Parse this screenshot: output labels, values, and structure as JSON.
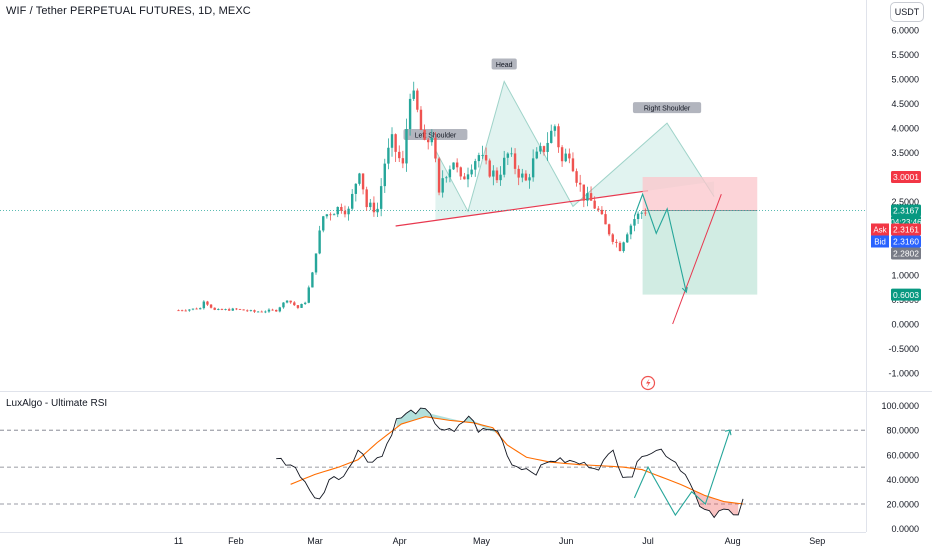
{
  "header": {
    "symbol_title": "WIF / Tether PERPETUAL FUTURES, 1D, MEXC",
    "currency_button": "USDT"
  },
  "chart_data": [
    {
      "type": "candlestick",
      "ylim": [
        -1.1,
        6.1
      ],
      "price_ticks": [
        "6.0000",
        "5.5000",
        "5.0000",
        "4.5000",
        "4.0000",
        "3.5000",
        "2.5000",
        "1.5000",
        "1.0000",
        "0.5000",
        "0.0000",
        "-0.5000",
        "-1.0000"
      ],
      "price_tick_values": [
        6,
        5.5,
        5,
        4.5,
        4,
        3.5,
        2.5,
        1.5,
        1,
        0.5,
        0,
        -0.5,
        -1
      ],
      "x_ticks": [
        "11",
        "Feb",
        "Mar",
        "Apr",
        "May",
        "Jun",
        "Jul",
        "Aug",
        "Sep"
      ],
      "x_tick_days": [
        10,
        31,
        60,
        91,
        121,
        152,
        182,
        213,
        244
      ],
      "pattern_labels": {
        "left": "Left Shoulder",
        "head": "Head",
        "right": "Right Shoulder"
      },
      "pattern_points": [
        [
          71,
          3.55
        ],
        [
          80,
          2.3
        ],
        [
          90,
          4.95
        ],
        [
          109,
          2.4
        ],
        [
          135,
          4.1
        ],
        [
          148,
          2.6
        ]
      ],
      "neckline": {
        "from": [
          60,
          2.0
        ],
        "to": [
          182,
          2.72
        ]
      },
      "projection_line": {
        "from": [
          150,
          2.65
        ],
        "to": [
          191,
          0.0
        ]
      },
      "forecast_path": [
        [
          177,
          2.2
        ],
        [
          180,
          2.65
        ],
        [
          185,
          1.85
        ],
        [
          189,
          2.35
        ],
        [
          196,
          0.65
        ]
      ],
      "position": {
        "x_from": 180,
        "x_to": 222,
        "entry": 2.3167,
        "stop": 3.0001,
        "target": 0.6003
      },
      "price_labels": {
        "stop": "3.0001",
        "last": "2.3167",
        "countdown": "04:23:46",
        "ask_label": "Ask",
        "ask": "2.3161",
        "bid_label": "Bid",
        "bid": "2.3160",
        "low": "2.2802",
        "target": "0.6003"
      },
      "anchors": [
        [
          0,
          0.28
        ],
        [
          6,
          0.32
        ],
        [
          7,
          0.48
        ],
        [
          10,
          0.28
        ],
        [
          16,
          0.3
        ],
        [
          21,
          0.25
        ],
        [
          27,
          0.28
        ],
        [
          30,
          0.5
        ],
        [
          33,
          0.33
        ],
        [
          35,
          0.45
        ],
        [
          37,
          1.02
        ],
        [
          38,
          1.5
        ],
        [
          40,
          2.2
        ],
        [
          45,
          2.4
        ],
        [
          47,
          2.3
        ],
        [
          50,
          3.2
        ],
        [
          52,
          2.4
        ],
        [
          55,
          2.35
        ],
        [
          57,
          3.3
        ],
        [
          59,
          3.7
        ],
        [
          62,
          3.2
        ],
        [
          64,
          4.8
        ],
        [
          66,
          4.3
        ],
        [
          68,
          3.6
        ],
        [
          70,
          3.9
        ],
        [
          72,
          2.6
        ],
        [
          73,
          3.0
        ],
        [
          76,
          3.35
        ],
        [
          78,
          2.9
        ],
        [
          81,
          3.3
        ],
        [
          83,
          3.45
        ],
        [
          85,
          3.2
        ],
        [
          88,
          3.0
        ],
        [
          91,
          3.45
        ],
        [
          94,
          3.1
        ],
        [
          96,
          2.9
        ],
        [
          98,
          3.3
        ],
        [
          101,
          3.6
        ],
        [
          104,
          4.05
        ],
        [
          106,
          3.3
        ],
        [
          108,
          3.55
        ],
        [
          110,
          3.0
        ],
        [
          112,
          2.6
        ],
        [
          114,
          2.5
        ],
        [
          116,
          2.3
        ],
        [
          118,
          2.0
        ],
        [
          120,
          1.75
        ],
        [
          122,
          1.55
        ],
        [
          124,
          1.9
        ],
        [
          126,
          2.15
        ],
        [
          128,
          2.28
        ],
        [
          129,
          2.32
        ]
      ],
      "ylim_rsi": [
        -2,
        104
      ],
      "rsi_ticks": [
        "100.0000",
        "80.0000",
        "60.0000",
        "40.0000",
        "20.0000",
        "0.0000"
      ],
      "rsi_tick_values": [
        100,
        80,
        60,
        40,
        20,
        0
      ],
      "rsi_levels": [
        80,
        50,
        20
      ],
      "rsi_anchors": [
        [
          0,
          57
        ],
        [
          4,
          50
        ],
        [
          7,
          30
        ],
        [
          9,
          23
        ],
        [
          11,
          40
        ],
        [
          14,
          43
        ],
        [
          17,
          64
        ],
        [
          19,
          55
        ],
        [
          22,
          59
        ],
        [
          25,
          88
        ],
        [
          28,
          95
        ],
        [
          31,
          96
        ],
        [
          34,
          82
        ],
        [
          37,
          78
        ],
        [
          40,
          92
        ],
        [
          42,
          80
        ],
        [
          46,
          80
        ],
        [
          49,
          52
        ],
        [
          51,
          50
        ],
        [
          54,
          46
        ],
        [
          57,
          56
        ],
        [
          60,
          55
        ],
        [
          63,
          53
        ],
        [
          67,
          50
        ],
        [
          70,
          63
        ],
        [
          72,
          44
        ],
        [
          74,
          43
        ],
        [
          76,
          61
        ],
        [
          80,
          64
        ],
        [
          83,
          54
        ],
        [
          86,
          39
        ],
        [
          88,
          17
        ],
        [
          91,
          10
        ],
        [
          93,
          15
        ],
        [
          96,
          13
        ],
        [
          97,
          25
        ]
      ],
      "rsi_ma_anchors": [
        [
          3,
          36
        ],
        [
          8,
          44
        ],
        [
          13,
          50
        ],
        [
          17,
          56
        ],
        [
          21,
          70
        ],
        [
          26,
          85
        ],
        [
          31,
          91
        ],
        [
          36,
          88
        ],
        [
          41,
          86
        ],
        [
          45,
          82
        ],
        [
          48,
          68
        ],
        [
          52,
          58
        ],
        [
          57,
          54
        ],
        [
          63,
          52
        ],
        [
          68,
          51
        ],
        [
          72,
          50
        ],
        [
          76,
          48
        ],
        [
          80,
          42
        ],
        [
          84,
          36
        ],
        [
          89,
          27
        ],
        [
          93,
          22
        ],
        [
          97,
          20
        ]
      ],
      "rsi_forecast": [
        [
          177,
          25
        ],
        [
          182,
          50
        ],
        [
          192,
          11
        ],
        [
          198,
          30
        ],
        [
          203,
          20
        ],
        [
          212,
          80
        ]
      ]
    }
  ],
  "indicator": {
    "name": "LuxAlgo - Ultimate RSI"
  },
  "colors": {
    "up": "#26a69a",
    "down": "#ef5350",
    "neckline": "#e8384f",
    "pattern_fill": "#c8e9e4",
    "profit_zone": "#b2dfd0",
    "loss_zone": "#fbc6cb",
    "rsi_line": "#131722",
    "rsi_ma": "#ff6d00"
  }
}
